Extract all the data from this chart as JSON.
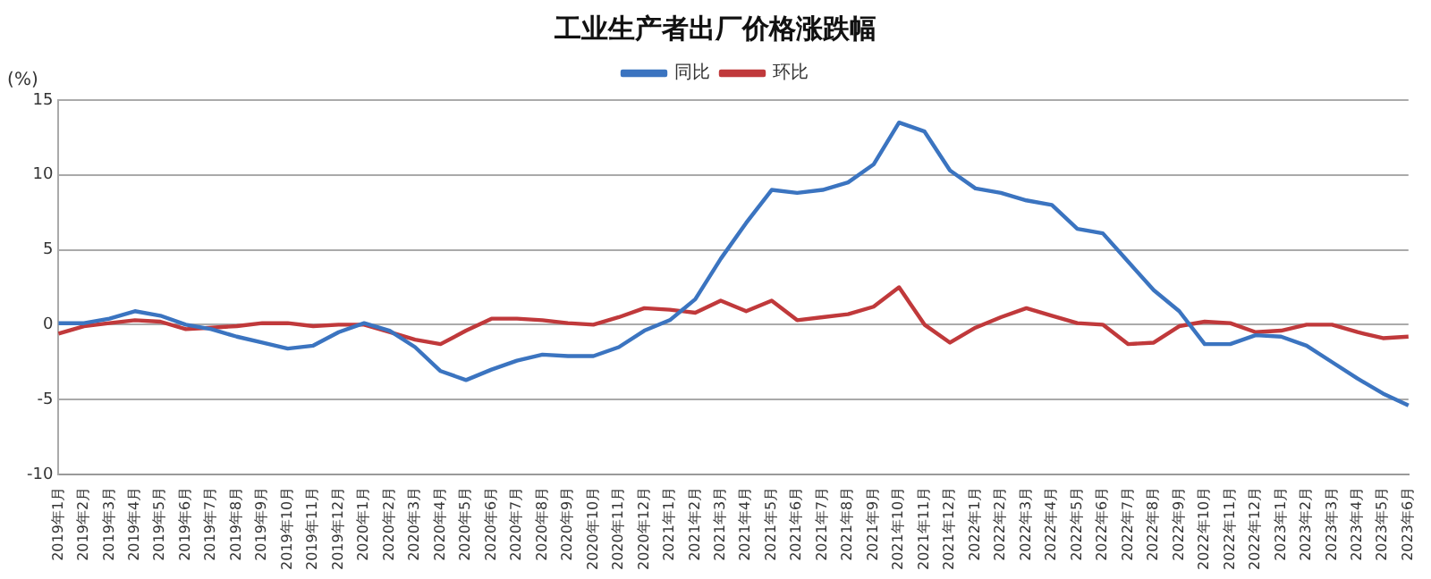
{
  "chart_data": {
    "type": "line",
    "title": "工业生产者出厂价格涨跌幅",
    "ylabel": "(%)",
    "categories": [
      "2019年1月",
      "2019年2月",
      "2019年3月",
      "2019年4月",
      "2019年5月",
      "2019年6月",
      "2019年7月",
      "2019年8月",
      "2019年9月",
      "2019年10月",
      "2019年11月",
      "2019年12月",
      "2020年1月",
      "2020年2月",
      "2020年3月",
      "2020年4月",
      "2020年5月",
      "2020年6月",
      "2020年7月",
      "2020年8月",
      "2020年9月",
      "2020年10月",
      "2020年11月",
      "2020年12月",
      "2021年1月",
      "2021年2月",
      "2021年3月",
      "2021年4月",
      "2021年5月",
      "2021年6月",
      "2021年7月",
      "2021年8月",
      "2021年9月",
      "2021年10月",
      "2021年11月",
      "2021年12月",
      "2022年1月",
      "2022年2月",
      "2022年3月",
      "2022年4月",
      "2022年5月",
      "2022年6月",
      "2022年7月",
      "2022年8月",
      "2022年9月",
      "2022年10月",
      "2022年11月",
      "2022年12月",
      "2023年1月",
      "2023年2月",
      "2023年3月",
      "2023年4月",
      "2023年5月",
      "2023年6月"
    ],
    "series": [
      {
        "name": "同比",
        "color": "#3b74c0",
        "values": [
          0.1,
          0.1,
          0.4,
          0.9,
          0.6,
          0.0,
          -0.3,
          -0.8,
          -1.2,
          -1.6,
          -1.4,
          -0.5,
          0.1,
          -0.4,
          -1.5,
          -3.1,
          -3.7,
          -3.0,
          -2.4,
          -2.0,
          -2.1,
          -2.1,
          -1.5,
          -0.4,
          0.3,
          1.7,
          4.4,
          6.8,
          9.0,
          8.8,
          9.0,
          9.5,
          10.7,
          13.5,
          12.9,
          10.3,
          9.1,
          8.8,
          8.3,
          8.0,
          6.4,
          6.1,
          4.2,
          2.3,
          0.9,
          -1.3,
          -1.3,
          -0.7,
          -0.8,
          -1.4,
          -2.5,
          -3.6,
          -4.6,
          -5.4
        ]
      },
      {
        "name": "环比",
        "color": "#c0393b",
        "values": [
          -0.6,
          -0.1,
          0.1,
          0.3,
          0.2,
          -0.3,
          -0.2,
          -0.1,
          0.1,
          0.1,
          -0.1,
          0.0,
          0.0,
          -0.5,
          -1.0,
          -1.3,
          -0.4,
          0.4,
          0.4,
          0.3,
          0.1,
          0.0,
          0.5,
          1.1,
          1.0,
          0.8,
          1.6,
          0.9,
          1.6,
          0.3,
          0.5,
          0.7,
          1.2,
          2.5,
          0.0,
          -1.2,
          -0.2,
          0.5,
          1.1,
          0.6,
          0.1,
          0.0,
          -1.3,
          -1.2,
          -0.1,
          0.2,
          0.1,
          -0.5,
          -0.4,
          0.0,
          0.0,
          -0.5,
          -0.9,
          -0.8
        ]
      }
    ],
    "ylim": [
      -10,
      15
    ],
    "yticks": [
      -10,
      -5,
      0,
      5,
      10,
      15
    ],
    "grid": "y",
    "legend": "top",
    "marker": "none",
    "line_style": "solid"
  }
}
